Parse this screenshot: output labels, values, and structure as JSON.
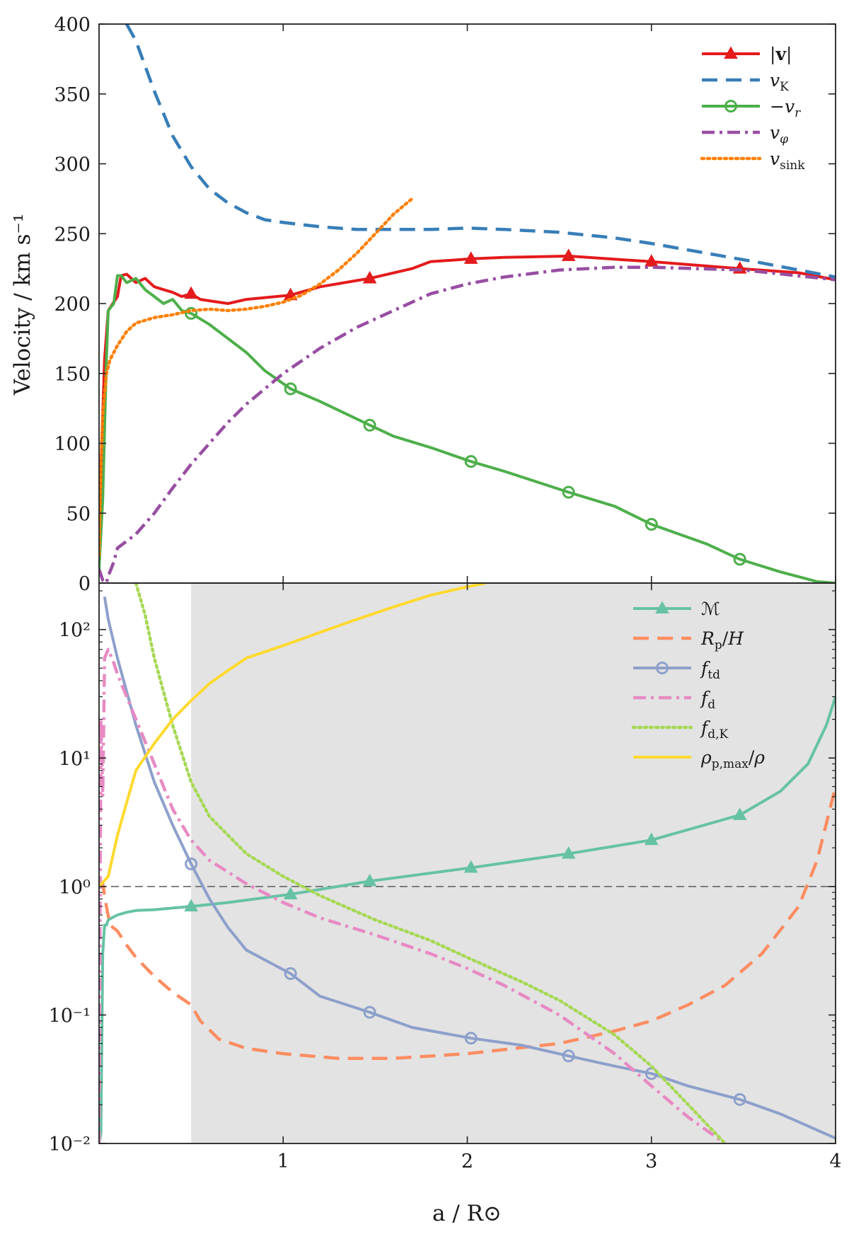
{
  "figure": {
    "shared_xlabel": "a / R⊙"
  },
  "chart_data": [
    {
      "type": "line",
      "panel": "top",
      "ylabel": "Velocity / km s⁻¹",
      "xlim": [
        0.0,
        4.0
      ],
      "ylim": [
        0,
        400
      ],
      "yscale": "linear",
      "x_ticks": [
        1,
        2,
        3,
        4
      ],
      "x_tick_labels": [],
      "y_ticks": [
        0,
        50,
        100,
        150,
        200,
        250,
        300,
        350,
        400
      ],
      "y_tick_labels": [
        "0",
        "50",
        "100",
        "150",
        "200",
        "250",
        "300",
        "350",
        "400"
      ],
      "grid": false,
      "legend_position": "top-right",
      "series": [
        {
          "name": "|v|",
          "color": "#e41a1c",
          "linestyle": "solid",
          "marker": "triangle",
          "marker_x": [
            0.5,
            1.04,
            1.47,
            2.02,
            2.55,
            3.0,
            3.48
          ],
          "x": [
            0.0,
            0.01,
            0.03,
            0.05,
            0.1,
            0.12,
            0.15,
            0.2,
            0.25,
            0.3,
            0.35,
            0.4,
            0.45,
            0.5,
            0.55,
            0.6,
            0.7,
            0.8,
            1.04,
            1.2,
            1.47,
            1.7,
            1.8,
            2.02,
            2.2,
            2.55,
            3.0,
            3.48,
            3.8,
            4.0
          ],
          "y": [
            25,
            80,
            160,
            195,
            205,
            220,
            221,
            215,
            218,
            212,
            210,
            208,
            205,
            207,
            203,
            202,
            200,
            203,
            206,
            212,
            218,
            225,
            230,
            232,
            233,
            234,
            230,
            225,
            222,
            217
          ]
        },
        {
          "name": "vK",
          "color": "#377eb8",
          "linestyle": "dashed",
          "marker": "none",
          "marker_x": [],
          "x": [
            0.15,
            0.2,
            0.3,
            0.4,
            0.5,
            0.6,
            0.7,
            0.8,
            0.9,
            1.0,
            1.2,
            1.4,
            1.6,
            1.8,
            2.0,
            2.2,
            2.5,
            2.8,
            3.0,
            3.3,
            3.6,
            3.8,
            4.0
          ],
          "y": [
            400,
            388,
            352,
            320,
            298,
            282,
            272,
            265,
            260,
            258,
            255,
            253,
            253,
            253,
            254,
            253,
            251,
            247,
            243,
            236,
            229,
            224,
            219
          ]
        },
        {
          "name": "−vr",
          "color": "#4daf4a",
          "linestyle": "solid",
          "marker": "circle",
          "marker_x": [
            0.5,
            1.04,
            1.47,
            2.02,
            2.55,
            3.0,
            3.48
          ],
          "x": [
            0.0,
            0.02,
            0.04,
            0.05,
            0.08,
            0.1,
            0.12,
            0.15,
            0.2,
            0.25,
            0.3,
            0.35,
            0.4,
            0.45,
            0.5,
            0.6,
            0.7,
            0.8,
            0.9,
            1.04,
            1.2,
            1.47,
            1.6,
            1.8,
            2.02,
            2.2,
            2.55,
            2.8,
            3.0,
            3.3,
            3.48,
            3.7,
            3.9,
            4.0
          ],
          "y": [
            10,
            60,
            160,
            195,
            200,
            220,
            220,
            215,
            218,
            210,
            205,
            200,
            203,
            195,
            193,
            185,
            175,
            165,
            152,
            139,
            130,
            113,
            105,
            97,
            87,
            80,
            65,
            55,
            42,
            28,
            17,
            8,
            1,
            0
          ]
        },
        {
          "name": "vφ",
          "color": "#984ea3",
          "linestyle": "dashdot",
          "marker": "none",
          "marker_x": [],
          "x": [
            0.0,
            0.02,
            0.04,
            0.05,
            0.08,
            0.1,
            0.2,
            0.3,
            0.4,
            0.5,
            0.6,
            0.7,
            0.8,
            1.0,
            1.2,
            1.4,
            1.6,
            1.8,
            2.0,
            2.2,
            2.5,
            2.8,
            3.0,
            3.5,
            4.0
          ],
          "y": [
            10,
            2,
            0,
            5,
            15,
            25,
            35,
            50,
            68,
            85,
            100,
            115,
            128,
            150,
            168,
            183,
            195,
            207,
            214,
            219,
            224,
            226,
            226,
            224,
            217
          ]
        },
        {
          "name": "vsink",
          "color": "#ff7f00",
          "linestyle": "dotted",
          "marker": "none",
          "marker_x": [],
          "x": [
            0.0,
            0.01,
            0.02,
            0.04,
            0.06,
            0.1,
            0.15,
            0.2,
            0.3,
            0.4,
            0.5,
            0.6,
            0.7,
            0.8,
            0.9,
            1.0,
            1.1,
            1.2,
            1.3,
            1.4,
            1.5,
            1.6,
            1.7
          ],
          "y": [
            20,
            80,
            120,
            150,
            160,
            170,
            180,
            186,
            190,
            192,
            195,
            196,
            195,
            196,
            198,
            201,
            206,
            214,
            224,
            236,
            250,
            264,
            275
          ]
        }
      ]
    },
    {
      "type": "line",
      "panel": "bottom",
      "ylabel": "",
      "xlabel": "a / R⊙",
      "xlim": [
        0.0,
        4.0
      ],
      "ylim": [
        0.01,
        230
      ],
      "yscale": "log",
      "x_ticks": [
        1,
        2,
        3,
        4
      ],
      "x_tick_labels": [
        "1",
        "2",
        "3",
        "4"
      ],
      "y_ticks": [
        0.01,
        0.1,
        1,
        10,
        100
      ],
      "y_tick_labels": [
        "10⁻²",
        "10⁻¹",
        "10⁰",
        "10¹",
        "10²"
      ],
      "reference_line": {
        "y": 1,
        "style": "dashed",
        "color": "#666666"
      },
      "shaded_region": {
        "x": [
          0.5,
          4.0
        ],
        "color": "#e3e3e3"
      },
      "grid": false,
      "legend_position": "top-right",
      "series": [
        {
          "name": "ℳ",
          "color": "#66c2a5",
          "linestyle": "solid",
          "marker": "triangle",
          "marker_x": [
            0.5,
            1.04,
            1.47,
            2.02,
            2.55,
            3.0,
            3.48
          ],
          "x": [
            0.0,
            0.01,
            0.02,
            0.03,
            0.04,
            0.05,
            0.08,
            0.1,
            0.15,
            0.2,
            0.3,
            0.4,
            0.5,
            0.7,
            1.04,
            1.47,
            2.02,
            2.55,
            3.0,
            3.48,
            3.7,
            3.85,
            3.95,
            4.0
          ],
          "y": [
            0.01,
            0.012,
            0.3,
            0.5,
            0.5,
            0.55,
            0.58,
            0.6,
            0.63,
            0.65,
            0.66,
            0.68,
            0.7,
            0.75,
            0.87,
            1.1,
            1.4,
            1.8,
            2.3,
            3.6,
            5.5,
            9.0,
            18.0,
            30.0
          ]
        },
        {
          "name": "Rp/H",
          "color": "#fc8d62",
          "linestyle": "dashed",
          "marker": "none",
          "marker_x": [],
          "x": [
            0.0,
            0.02,
            0.04,
            0.06,
            0.1,
            0.15,
            0.2,
            0.3,
            0.4,
            0.5,
            0.55,
            0.65,
            0.8,
            1.0,
            1.3,
            1.6,
            2.0,
            2.5,
            2.8,
            3.0,
            3.2,
            3.4,
            3.6,
            3.8,
            3.9,
            4.0
          ],
          "y": [
            1.0,
            1.05,
            0.7,
            0.5,
            0.45,
            0.35,
            0.28,
            0.2,
            0.15,
            0.12,
            0.09,
            0.065,
            0.055,
            0.05,
            0.046,
            0.046,
            0.05,
            0.06,
            0.075,
            0.09,
            0.12,
            0.17,
            0.3,
            0.7,
            1.6,
            6.0
          ]
        },
        {
          "name": "ftd",
          "color": "#8da0cb",
          "linestyle": "solid",
          "marker": "circle",
          "marker_x": [
            0.5,
            1.04,
            1.47,
            2.02,
            2.55,
            3.0,
            3.48
          ],
          "x": [
            0.03,
            0.05,
            0.1,
            0.2,
            0.3,
            0.4,
            0.5,
            0.6,
            0.7,
            0.8,
            1.04,
            1.2,
            1.47,
            1.7,
            2.02,
            2.3,
            2.55,
            2.8,
            3.0,
            3.2,
            3.48,
            3.7,
            4.0
          ],
          "y": [
            180,
            120,
            60,
            18,
            6.5,
            3.0,
            1.5,
            0.8,
            0.48,
            0.32,
            0.21,
            0.14,
            0.105,
            0.08,
            0.066,
            0.058,
            0.048,
            0.04,
            0.035,
            0.028,
            0.022,
            0.017,
            0.011
          ]
        },
        {
          "name": "fd",
          "color": "#e78ac3",
          "linestyle": "dashdot",
          "marker": "none",
          "marker_x": [],
          "x": [
            0.0,
            0.01,
            0.02,
            0.03,
            0.05,
            0.08,
            0.1,
            0.2,
            0.3,
            0.4,
            0.5,
            0.6,
            0.8,
            1.0,
            1.2,
            1.5,
            1.8,
            2.0,
            2.2,
            2.5,
            2.8,
            3.0,
            3.2,
            3.4
          ],
          "y": [
            0.01,
            20,
            5,
            60,
            70,
            55,
            45,
            20,
            9.0,
            4.0,
            2.3,
            1.6,
            1.05,
            0.75,
            0.57,
            0.42,
            0.3,
            0.23,
            0.17,
            0.1,
            0.05,
            0.028,
            0.016,
            0.01
          ]
        },
        {
          "name": "fd,K",
          "color": "#a6d854",
          "linestyle": "dotted",
          "marker": "none",
          "marker_x": [],
          "x": [
            0.2,
            0.25,
            0.3,
            0.4,
            0.5,
            0.6,
            0.8,
            1.0,
            1.2,
            1.5,
            1.8,
            2.0,
            2.3,
            2.5,
            2.8,
            3.0,
            3.2,
            3.4
          ],
          "y": [
            230,
            130,
            60,
            18,
            6.5,
            3.5,
            1.8,
            1.2,
            0.85,
            0.55,
            0.38,
            0.28,
            0.18,
            0.13,
            0.07,
            0.04,
            0.02,
            0.01
          ]
        },
        {
          "name": "ρp,max/ρ",
          "color": "#ffd92f",
          "linestyle": "solid",
          "marker": "none",
          "marker_x": [],
          "x": [
            0.0,
            0.05,
            0.1,
            0.15,
            0.2,
            0.3,
            0.4,
            0.5,
            0.6,
            0.7,
            0.8,
            1.0,
            1.2,
            1.4,
            1.6,
            1.8,
            2.0,
            2.1
          ],
          "y": [
            1.0,
            1.2,
            2.5,
            4.5,
            8.0,
            13,
            20,
            28,
            38,
            48,
            60,
            75,
            95,
            120,
            150,
            185,
            215,
            230
          ]
        }
      ]
    }
  ]
}
